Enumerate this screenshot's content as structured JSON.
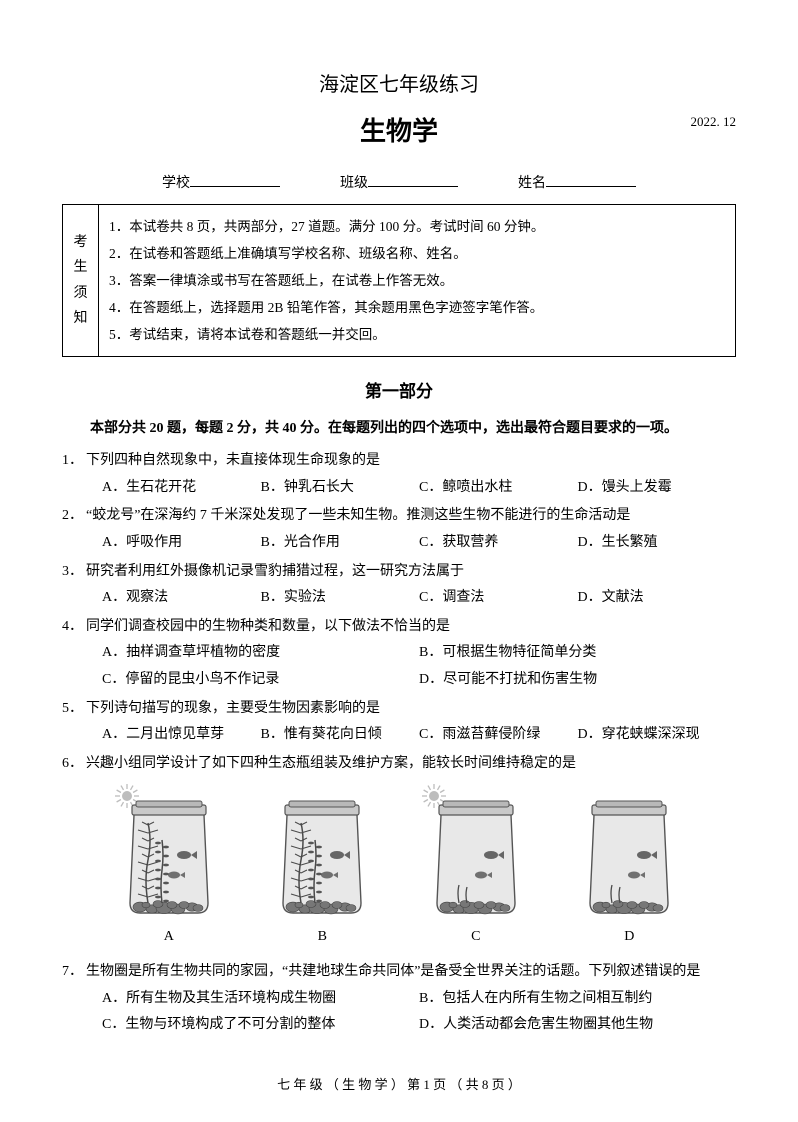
{
  "header": {
    "title": "海淀区七年级练习",
    "subject": "生物学",
    "date": "2022. 12"
  },
  "blanks": {
    "school_label": "学校",
    "class_label": "班级",
    "name_label": "姓名"
  },
  "notice": {
    "side_label": [
      "考",
      "生",
      "须",
      "知"
    ],
    "lines": [
      "1．本试卷共 8 页，共两部分，27 道题。满分 100 分。考试时间 60 分钟。",
      "2．在试卷和答题纸上准确填写学校名称、班级名称、姓名。",
      "3．答案一律填涂或书写在答题纸上，在试卷上作答无效。",
      "4．在答题纸上，选择题用 2B 铅笔作答，其余题用黑色字迹签字笔作答。",
      "5．考试结束，请将本试卷和答题纸一并交回。"
    ]
  },
  "section1": {
    "title": "第一部分",
    "intro": "本部分共 20 题，每题 2 分，共 40 分。在每题列出的四个选项中，选出最符合题目要求的一项。"
  },
  "questions": [
    {
      "num": "1．",
      "stem": "下列四种自然现象中，未直接体现生命现象的是",
      "opts": [
        "A．生石花开花",
        "B．钟乳石长大",
        "C．鲸喷出水柱",
        "D．馒头上发霉"
      ],
      "cols": "four-col"
    },
    {
      "num": "2．",
      "stem": "“蛟龙号”在深海约 7 千米深处发现了一些未知生物。推测这些生物不能进行的生命活动是",
      "opts": [
        "A．呼吸作用",
        "B．光合作用",
        "C．获取营养",
        "D．生长繁殖"
      ],
      "cols": "four-col"
    },
    {
      "num": "3．",
      "stem": "研究者利用红外摄像机记录雪豹捕猎过程，这一研究方法属于",
      "opts": [
        "A．观察法",
        "B．实验法",
        "C．调查法",
        "D．文献法"
      ],
      "cols": "four-col"
    },
    {
      "num": "4．",
      "stem": "同学们调查校园中的生物种类和数量，以下做法不恰当的是",
      "opts": [
        "A．抽样调查草坪植物的密度",
        "B．可根据生物特征简单分类",
        "C．停留的昆虫小鸟不作记录",
        "D．尽可能不打扰和伤害生物"
      ],
      "cols": "two-col"
    },
    {
      "num": "5．",
      "stem": "下列诗句描写的现象，主要受生物因素影响的是",
      "opts": [
        "A．二月出惊见草芽",
        "B．惟有葵花向日倾",
        "C．雨滋苔藓侵阶绿",
        "D．穿花蛱蝶深深现"
      ],
      "cols": "four-col"
    },
    {
      "num": "6．",
      "stem": "兴趣小组同学设计了如下四种生态瓶组装及维护方案，能较长时间维持稳定的是",
      "opts": [],
      "cols": "four-col"
    },
    {
      "num": "7．",
      "stem": "生物圈是所有生物共同的家园，“共建地球生命共同体”是备受全世界关注的话题。下列叙述错误的是",
      "opts": [
        "A．所有生物及其生活环境构成生物圈",
        "B．包括人在内所有生物之间相互制约",
        "C．生物与环境构成了不可分割的整体",
        "D．人类活动都会危害生物圈其他生物"
      ],
      "cols": "two-col"
    }
  ],
  "q6_labels": [
    "A",
    "B",
    "C",
    "D"
  ],
  "q6_config": [
    {
      "sun": true,
      "plants": true
    },
    {
      "sun": false,
      "plants": true
    },
    {
      "sun": true,
      "plants": false
    },
    {
      "sun": false,
      "plants": false
    }
  ],
  "footer": "七 年 级 （ 生 物 学 ）  第 1 页 （ 共 8 页 ）",
  "colors": {
    "text": "#000000",
    "background": "#ffffff",
    "border": "#000000",
    "jar_fill": "#d8d8d8",
    "jar_stroke": "#4a4a4a",
    "plant": "#555555",
    "stone": "#666666",
    "sun": "#888888"
  }
}
